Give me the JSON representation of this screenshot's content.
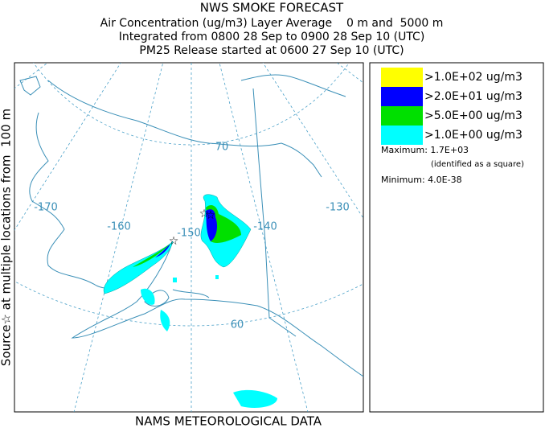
{
  "header": {
    "title": "NWS SMOKE FORECAST",
    "lines": [
      "Air Concentration (ug/m3) Layer Average    0 m and  5000 m",
      "Integrated from 0800 28 Sep to 0900 28 Sep 10 (UTC)",
      "PM25 Release started at 0600 27 Sep 10 (UTC)"
    ]
  },
  "side_label": "Source☆ at multiple locations from  100 m",
  "map_labels": {
    "longitudes": [
      "-170",
      "-160",
      "-150",
      "-140",
      "-130"
    ],
    "latitudes": [
      "70",
      "60"
    ]
  },
  "legend": [
    {
      "label": ">1.0E+02 ug/m3",
      "color": "#ffff00"
    },
    {
      "label": ">2.0E+01 ug/m3",
      "color": "#0000ff"
    },
    {
      "label": ">5.0E+00 ug/m3",
      "color": "#00e000"
    },
    {
      "label": ">1.0E+00 ug/m3",
      "color": "#00ffff"
    }
  ],
  "stats": {
    "maximum": "Maximum: 1.7E+03",
    "maximum_note": "(identified as a square)",
    "minimum": "Minimum: 4.0E-38"
  },
  "footer": "NAMS METEOROLOGICAL DATA"
}
